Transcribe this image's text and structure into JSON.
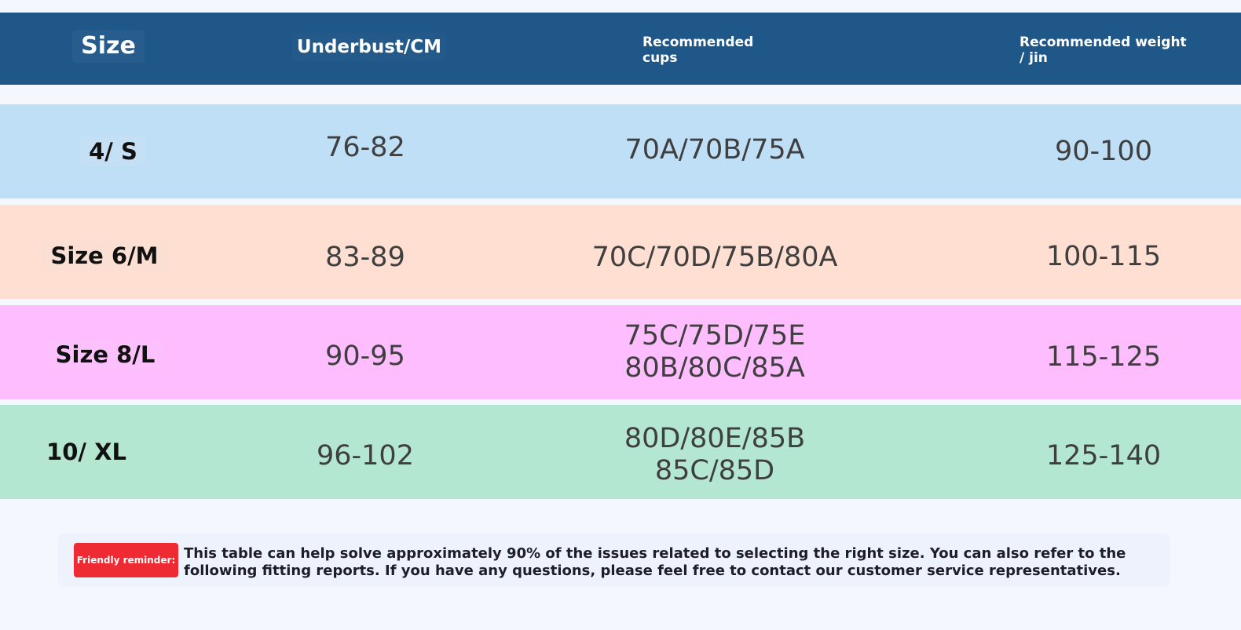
{
  "colors": {
    "page_background": "#f5f7fe",
    "header_background": "#1f5788",
    "row_small": "#bfdff6",
    "row_medium": "#ffdfd1",
    "row_large": "#febdfe",
    "row_xl": "#b3e7d1",
    "reminder_badge": "#ee2a33"
  },
  "header": {
    "size": "Size",
    "underbust": "Underbust/CM",
    "cups": "Recommended\ncups",
    "weight": "Recommended weight\n/ jin"
  },
  "rows": [
    {
      "size": "4/ S",
      "underbust": "76-82",
      "cups": "70A/70B/75A",
      "weight": "90-100"
    },
    {
      "size": "Size 6/M",
      "underbust": "83-89",
      "cups": "70C/70D/75B/80A",
      "weight": "100-115"
    },
    {
      "size": "Size 8/L",
      "underbust": "90-95",
      "cups": "75C/75D/75E\n80B/80C/85A",
      "weight": "115-125"
    },
    {
      "size": "10/ XL",
      "underbust": "96-102",
      "cups": "80D/80E/85B\n85C/85D",
      "weight": "125-140"
    }
  ],
  "reminder": {
    "badge": "Friendly reminder:",
    "text_line_1": "This table can help solve approximately 90% of the issues related to selecting the right size. You can also refer to the",
    "text_line_2": "following fitting reports. If you have any questions, please feel free to contact our customer service representatives."
  }
}
